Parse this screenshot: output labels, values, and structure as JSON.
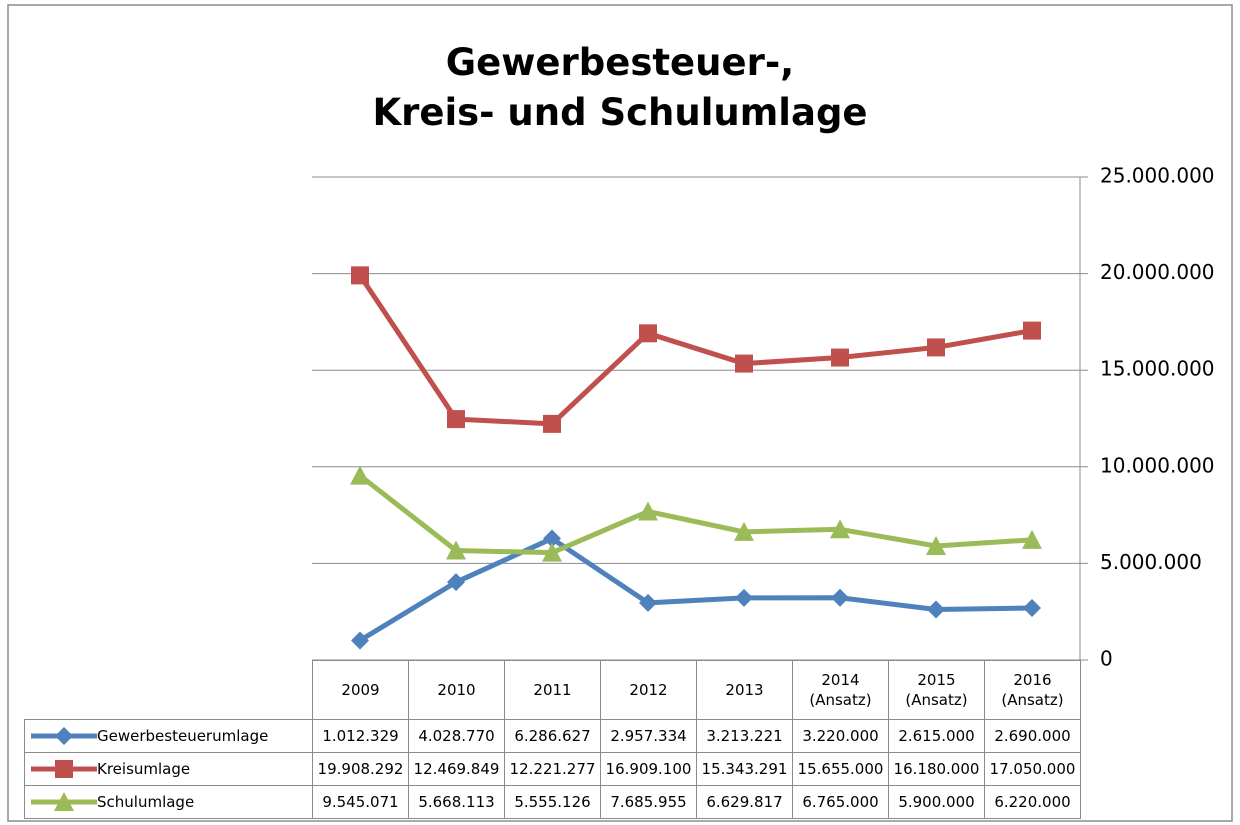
{
  "chart_data": {
    "type": "line",
    "title": "Gewerbesteuer-,\nKreis- und Schulumlage",
    "categories": [
      "2009",
      "2010",
      "2011",
      "2012",
      "2013",
      "2014\n(Ansatz)",
      "2015\n(Ansatz)",
      "2016\n(Ansatz)"
    ],
    "series": [
      {
        "name": "Gewerbesteuerumlage",
        "color": "#4f81bd",
        "marker": "diamond",
        "values": [
          1012329,
          4028770,
          6286627,
          2957334,
          3213221,
          3220000,
          2615000,
          2690000
        ],
        "value_labels": [
          "1.012.329",
          "4.028.770",
          "6.286.627",
          "2.957.334",
          "3.213.221",
          "3.220.000",
          "2.615.000",
          "2.690.000"
        ]
      },
      {
        "name": "Kreisumlage",
        "color": "#c0504d",
        "marker": "square",
        "values": [
          19908292,
          12469849,
          12221277,
          16909100,
          15343291,
          15655000,
          16180000,
          17050000
        ],
        "value_labels": [
          "19.908.292",
          "12.469.849",
          "12.221.277",
          "16.909.100",
          "15.343.291",
          "15.655.000",
          "16.180.000",
          "17.050.000"
        ]
      },
      {
        "name": "Schulumlage",
        "color": "#9bbb59",
        "marker": "triangle",
        "values": [
          9545071,
          5668113,
          5555126,
          7685955,
          6629817,
          6765000,
          5900000,
          6220000
        ],
        "value_labels": [
          "9.545.071",
          "5.668.113",
          "5.555.126",
          "7.685.955",
          "6.629.817",
          "6.765.000",
          "5.900.000",
          "6.220.000"
        ]
      }
    ],
    "ylim": [
      0,
      25000000
    ],
    "yticks": [
      0,
      {
        "value": 5000000,
        "label": "5.000.000"
      },
      {
        "value": 10000000,
        "label": "10.000.000"
      },
      {
        "value": 15000000,
        "label": "15.000.000"
      },
      {
        "value": 20000000,
        "label": "20.000.000"
      },
      {
        "value": 25000000,
        "label": "25.000.000"
      }
    ],
    "grid": true,
    "y_axis_side": "right"
  }
}
